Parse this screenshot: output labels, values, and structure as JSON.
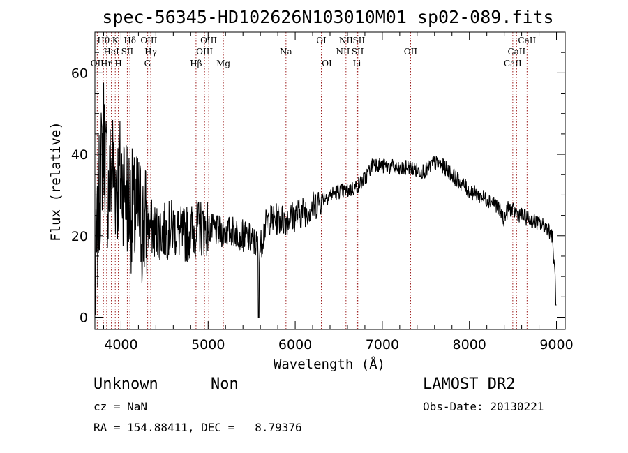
{
  "chart_data": {
    "type": "line",
    "title": "spec-56345-HD102626N103010M01_sp02-089.fits",
    "xlabel": "Wavelength (Å)",
    "ylabel": "Flux (relative)",
    "xlim": [
      3700,
      9100
    ],
    "ylim": [
      -3,
      70
    ],
    "x_ticks": [
      4000,
      5000,
      6000,
      7000,
      8000,
      9000
    ],
    "y_ticks": [
      0,
      20,
      40,
      60
    ],
    "grid": false,
    "line_markers": [
      {
        "label": "OII",
        "wavelength": 3727,
        "row": 3
      },
      {
        "label": "Hθ",
        "wavelength": 3798,
        "row": 1
      },
      {
        "label": "Hη",
        "wavelength": 3835,
        "row": 3
      },
      {
        "label": "HeI",
        "wavelength": 3889,
        "row": 2
      },
      {
        "label": "K",
        "wavelength": 3934,
        "row": 1
      },
      {
        "label": "H",
        "wavelength": 3969,
        "row": 3
      },
      {
        "label": "SII",
        "wavelength": 4072,
        "row": 2
      },
      {
        "label": "Hδ",
        "wavelength": 4102,
        "row": 1
      },
      {
        "label": "G",
        "wavelength": 4304,
        "row": 3
      },
      {
        "label": "OIII",
        "wavelength": 4320,
        "row": 1
      },
      {
        "label": "Hγ",
        "wavelength": 4341,
        "row": 2
      },
      {
        "label": "Hβ",
        "wavelength": 4861,
        "row": 3
      },
      {
        "label": "OIII",
        "wavelength": 4959,
        "row": 2
      },
      {
        "label": "OIII",
        "wavelength": 5007,
        "row": 1
      },
      {
        "label": "Mg",
        "wavelength": 5175,
        "row": 3
      },
      {
        "label": "Na",
        "wavelength": 5894,
        "row": 2
      },
      {
        "label": "OI",
        "wavelength": 6300,
        "row": 1
      },
      {
        "label": "OI",
        "wavelength": 6364,
        "row": 3
      },
      {
        "label": "NII",
        "wavelength": 6548,
        "row": 2
      },
      {
        "label": "NII",
        "wavelength": 6583,
        "row": 1
      },
      {
        "label": "Li",
        "wavelength": 6708,
        "row": 3
      },
      {
        "label": "SII",
        "wavelength": 6717,
        "row": 2
      },
      {
        "label": "SII",
        "wavelength": 6731,
        "row": 1
      },
      {
        "label": "OII",
        "wavelength": 7325,
        "row": 2
      },
      {
        "label": "CaII",
        "wavelength": 8498,
        "row": 3
      },
      {
        "label": "CaII",
        "wavelength": 8542,
        "row": 2
      },
      {
        "label": "CaII",
        "wavelength": 8662,
        "row": 1
      }
    ],
    "series": [
      {
        "color": "#000000",
        "x": [
          3700,
          3750,
          3800,
          3850,
          3900,
          3950,
          4000,
          4050,
          4100,
          4150,
          4200,
          4250,
          4300,
          4350,
          4400,
          4500,
          4600,
          4700,
          4800,
          4900,
          5000,
          5100,
          5200,
          5300,
          5400,
          5500,
          5550,
          5600,
          5650,
          5700,
          5800,
          5900,
          6000,
          6100,
          6200,
          6300,
          6400,
          6500,
          6600,
          6700,
          6800,
          6850,
          6900,
          7000,
          7100,
          7200,
          7300,
          7400,
          7500,
          7600,
          7700,
          7800,
          7900,
          8000,
          8100,
          8200,
          8300,
          8400,
          8450,
          8500,
          8600,
          8700,
          8800,
          8900,
          8950,
          9000
        ],
        "y": [
          5,
          30,
          45,
          30,
          38,
          32,
          35,
          32,
          28,
          24,
          26,
          22,
          23,
          22,
          21,
          21,
          22,
          20,
          21,
          22,
          22,
          21,
          21,
          21,
          20,
          19,
          18,
          17,
          22,
          24,
          24,
          24,
          25,
          26,
          27,
          29,
          30,
          31,
          31,
          32,
          34,
          36,
          38,
          37,
          37,
          36,
          37,
          36,
          36,
          38,
          37,
          35,
          33,
          31,
          30,
          29,
          28,
          24,
          27,
          26,
          25,
          24,
          23,
          22,
          20,
          5
        ]
      }
    ]
  },
  "info": {
    "object_type": "Unknown",
    "object_subtype": "Non",
    "survey": "LAMOST DR2",
    "redshift": "cz = NaN",
    "obs_date": "Obs-Date: 20130221",
    "coords": "RA = 154.88411, DEC =   8.79376"
  }
}
